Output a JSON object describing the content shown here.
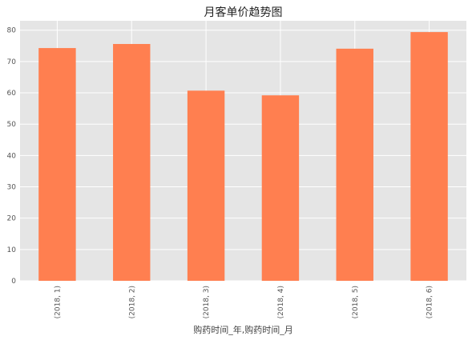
{
  "chart_data": {
    "type": "bar",
    "title": "月客单价趋势图",
    "xlabel": "购药时间_年,购药时间_月",
    "ylabel": "",
    "categories": [
      "(2018, 1)",
      "(2018, 2)",
      "(2018, 3)",
      "(2018, 4)",
      "(2018, 5)",
      "(2018, 6)"
    ],
    "values": [
      74.3,
      75.6,
      60.7,
      59.2,
      74.1,
      79.4
    ],
    "ylim": [
      0,
      83
    ],
    "yticks": [
      0,
      10,
      20,
      30,
      40,
      50,
      60,
      70,
      80
    ],
    "grid": true,
    "legend": "none",
    "colors": {
      "bar": "#ff7f50",
      "plot_background": "#e5e5e5",
      "grid": "#ffffff"
    }
  }
}
